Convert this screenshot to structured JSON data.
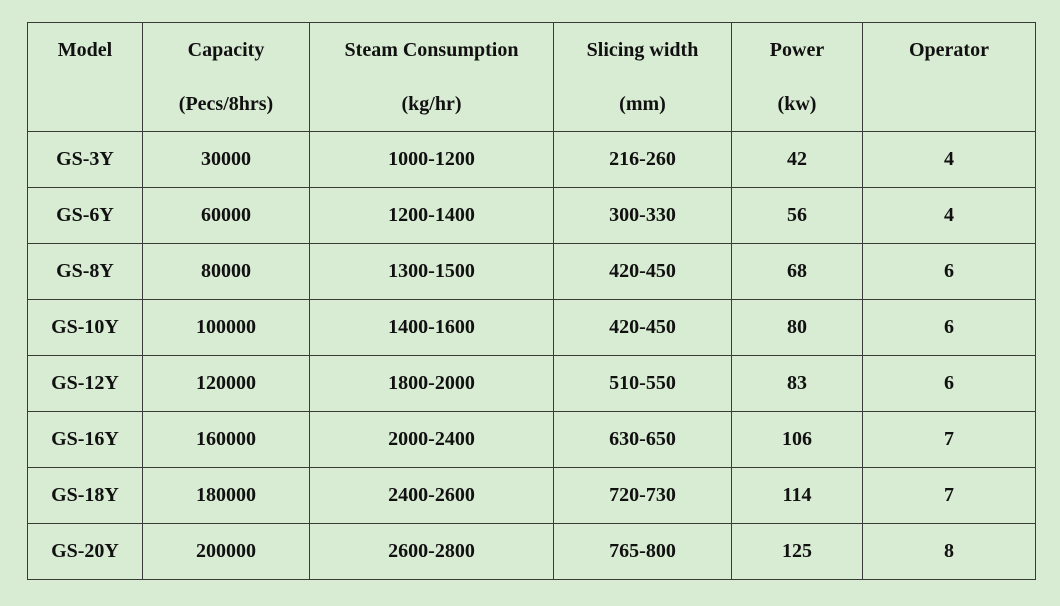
{
  "table": {
    "header": [
      [
        "Model"
      ],
      [
        "Capacity",
        "(Pecs/8hrs)"
      ],
      [
        "Steam Consumption",
        "(kg/hr)"
      ],
      [
        "Slicing width",
        "(mm)"
      ],
      [
        "Power",
        "(kw)"
      ],
      [
        "Operator"
      ]
    ],
    "rows": [
      [
        "GS-3Y",
        30000,
        "1000-1200",
        "216-260",
        42,
        4
      ],
      [
        "GS-6Y",
        60000,
        "1200-1400",
        "300-330",
        56,
        4
      ],
      [
        "GS-8Y",
        80000,
        "1300-1500",
        "420-450",
        68,
        6
      ],
      [
        "GS-10Y",
        100000,
        "1400-1600",
        "420-450",
        80,
        6
      ],
      [
        "GS-12Y",
        120000,
        "1800-2000",
        "510-550",
        83,
        6
      ],
      [
        "GS-16Y",
        160000,
        "2000-2400",
        "630-650",
        106,
        7
      ],
      [
        "GS-18Y",
        180000,
        "2400-2600",
        "720-730",
        114,
        7
      ],
      [
        "GS-20Y",
        200000,
        "2600-2800",
        "765-800",
        125,
        8
      ]
    ]
  }
}
